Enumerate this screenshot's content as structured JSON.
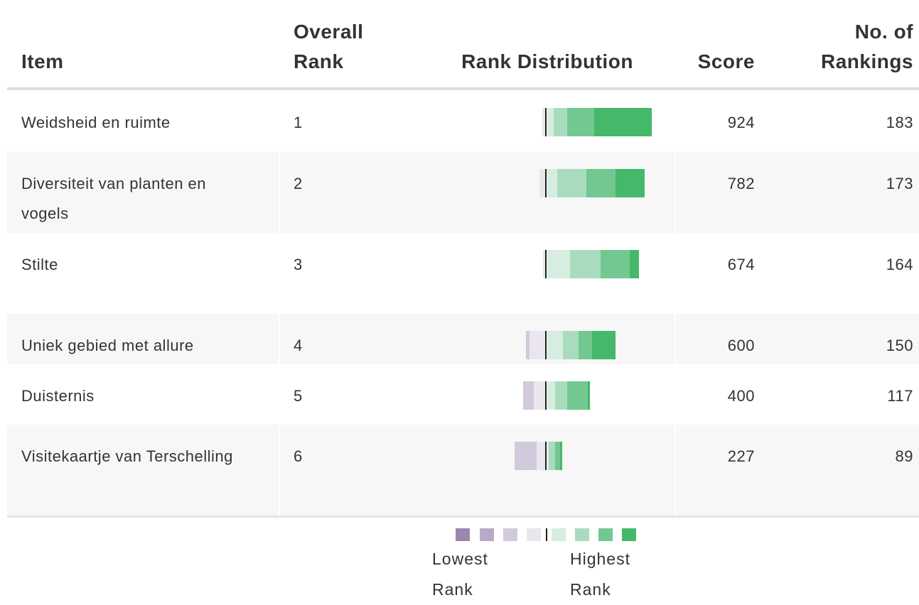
{
  "table": {
    "columns": [
      "Item",
      "Overall Rank",
      "Rank Distribution",
      "Score",
      "No. of Rankings"
    ],
    "rows": [
      {
        "item": "Weidsheid en ruimte",
        "rank": "1",
        "distribution": [
          0,
          0,
          0,
          4,
          9,
          19,
          38,
          81
        ],
        "score": "924",
        "rankings": "183"
      },
      {
        "item": "Diversiteit van planten en vogels",
        "rank": "2",
        "distribution": [
          0,
          0,
          0,
          8,
          14,
          41,
          41,
          41
        ],
        "score": "782",
        "rankings": "173"
      },
      {
        "item": "Stilte",
        "rank": "3",
        "distribution": [
          0,
          0,
          0,
          3,
          32,
          43,
          41,
          13
        ],
        "score": "674",
        "rankings": "164"
      },
      {
        "item": "Uniek gebied met allure",
        "rank": "4",
        "distribution": [
          0,
          0,
          5,
          22,
          22,
          22,
          19,
          33
        ],
        "score": "600",
        "rankings": "150"
      },
      {
        "item": "Duisternis",
        "rank": "5",
        "distribution": [
          0,
          0,
          15,
          16,
          11,
          17,
          29,
          3
        ],
        "score": "400",
        "rankings": "117"
      },
      {
        "item": "Visitekaartje van Terschelling",
        "rank": "6",
        "distribution": [
          0,
          0,
          31,
          12,
          2,
          9,
          7,
          3
        ],
        "score": "227",
        "rankings": "89"
      }
    ]
  },
  "legend": {
    "colors": [
      "#9e86ae",
      "#b8a9c7",
      "#d3c9dc",
      "#e9e6ee",
      "#d6ede0",
      "#a9dcbe",
      "#72c890",
      "#45b86a"
    ],
    "low_label": "Lowest Rank",
    "high_label": "Highest Rank"
  }
}
